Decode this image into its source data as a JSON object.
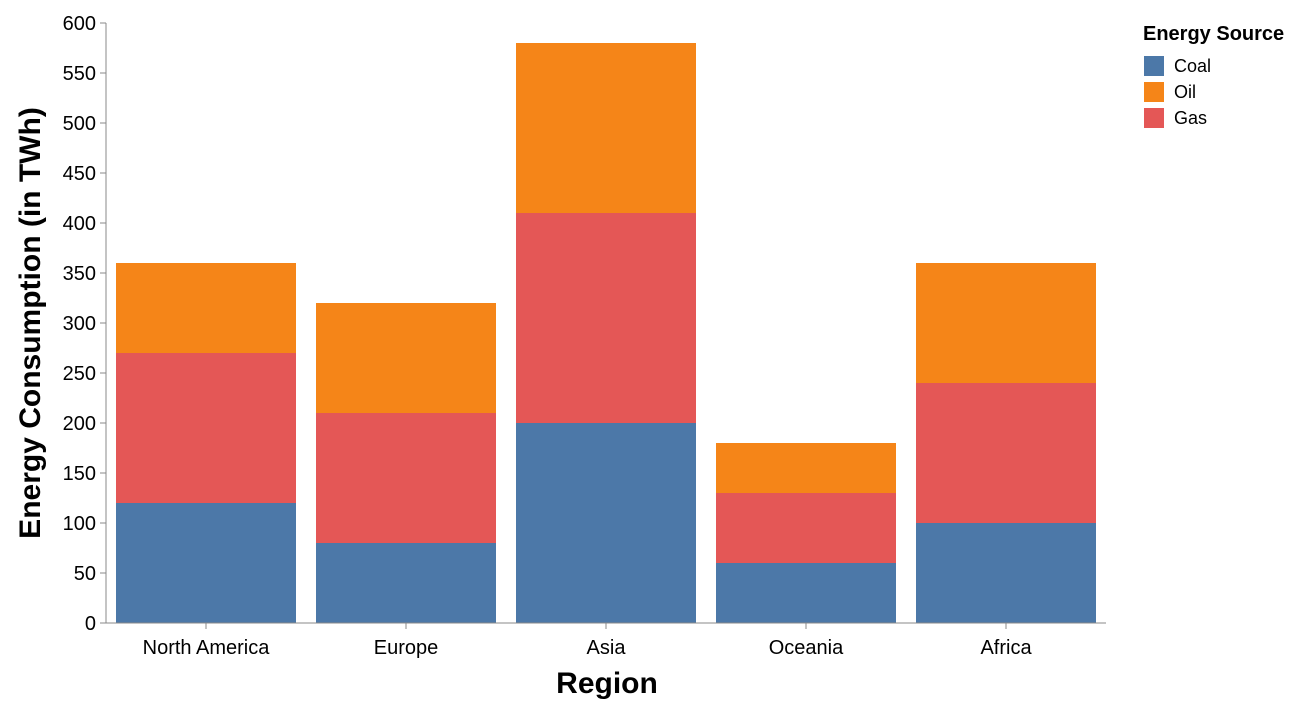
{
  "chart_data": {
    "type": "bar",
    "stacked": true,
    "categories": [
      "North America",
      "Europe",
      "Asia",
      "Oceania",
      "Africa"
    ],
    "series": [
      {
        "name": "Coal",
        "values": [
          120,
          80,
          200,
          60,
          100
        ],
        "color": "#4c78a8"
      },
      {
        "name": "Gas",
        "values": [
          150,
          130,
          210,
          70,
          140
        ],
        "color": "#e45756"
      },
      {
        "name": "Oil",
        "values": [
          90,
          110,
          170,
          50,
          120
        ],
        "color": "#f58518"
      }
    ],
    "xlabel": "Region",
    "ylabel": "Energy Consumption (in TWh)",
    "ylim": [
      0,
      600
    ],
    "yticks": [
      0,
      50,
      100,
      150,
      200,
      250,
      300,
      350,
      400,
      450,
      500,
      550,
      600
    ],
    "grid": false,
    "legend": {
      "title": "Energy Source",
      "position": "top-right",
      "items": [
        {
          "label": "Coal",
          "color": "#4c78a8"
        },
        {
          "label": "Oil",
          "color": "#f58518"
        },
        {
          "label": "Gas",
          "color": "#e45756"
        }
      ]
    }
  }
}
